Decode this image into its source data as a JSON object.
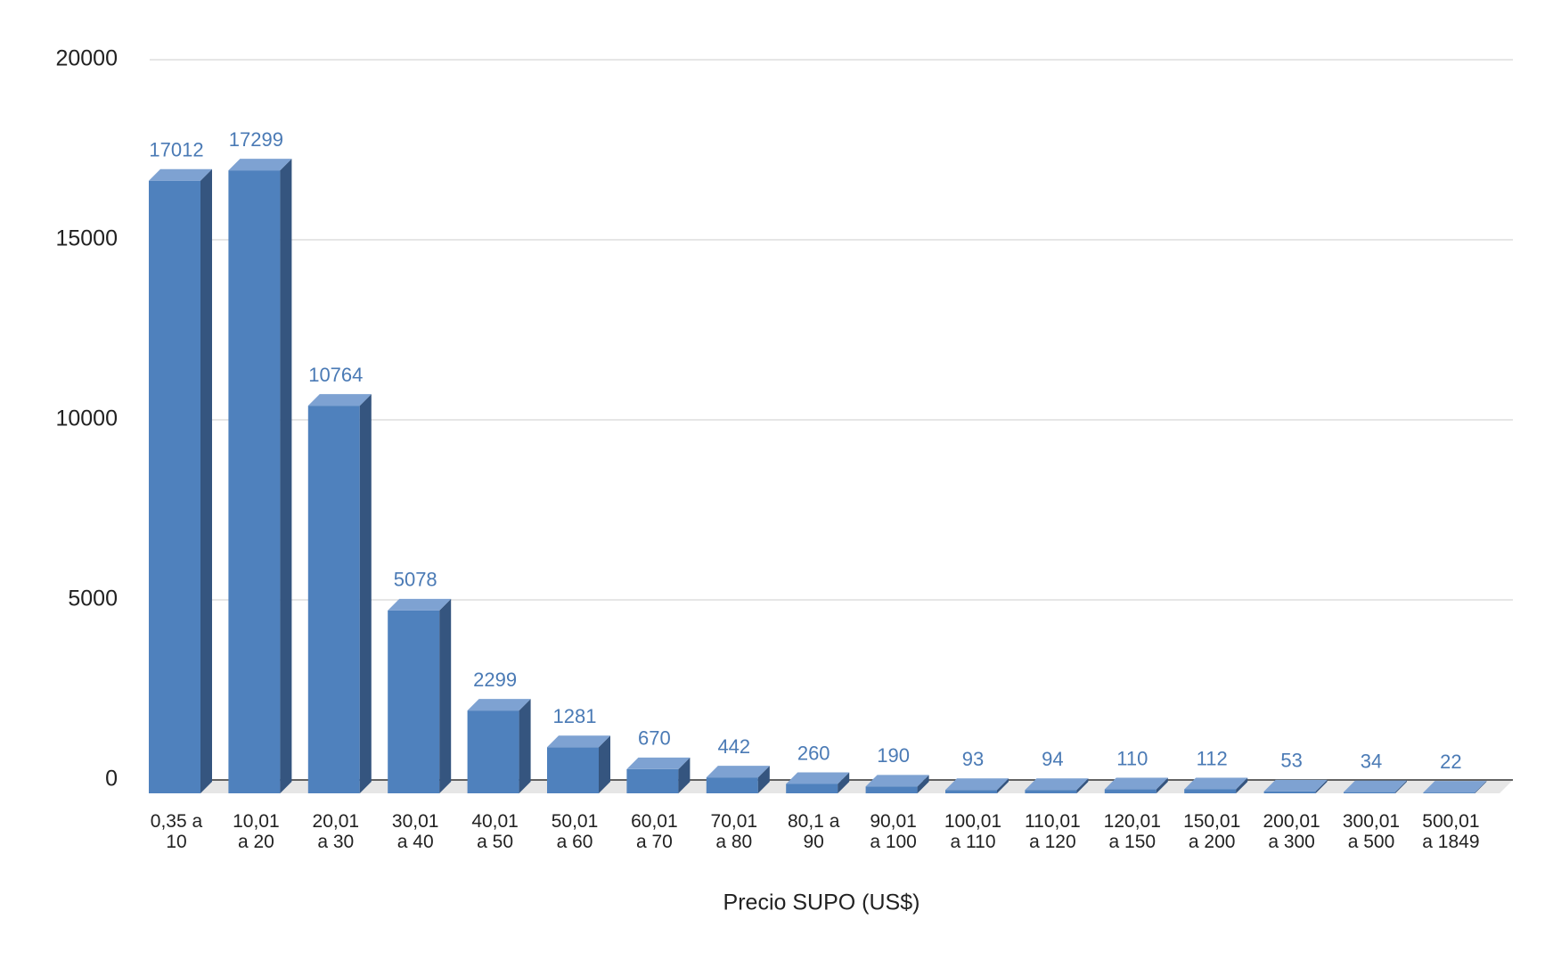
{
  "chart_data": {
    "type": "bar3d",
    "x_label": "Precio SUPO (US$)",
    "categories": [
      "0,35 a 10",
      "10,01 a 20",
      "20,01 a 30",
      "30,01 a 40",
      "40,01 a 50",
      "50,01 a 60",
      "60,01 a 70",
      "70,01 a 80",
      "80,1 a 90",
      "90,01 a 100",
      "100,01 a 110",
      "110,01 a 120",
      "120,01 a 150",
      "150,01 a 200",
      "200,01 a 300",
      "300,01 a 500",
      "500,01 a 1849"
    ],
    "values": [
      17012,
      17299,
      10764,
      5078,
      2299,
      1281,
      670,
      442,
      260,
      190,
      93,
      94,
      110,
      112,
      53,
      34,
      22
    ],
    "color": "#4f81bd",
    "ylim": [
      0,
      20000
    ],
    "yticks": [
      0,
      5000,
      10000,
      15000,
      20000
    ],
    "grid": true
  }
}
